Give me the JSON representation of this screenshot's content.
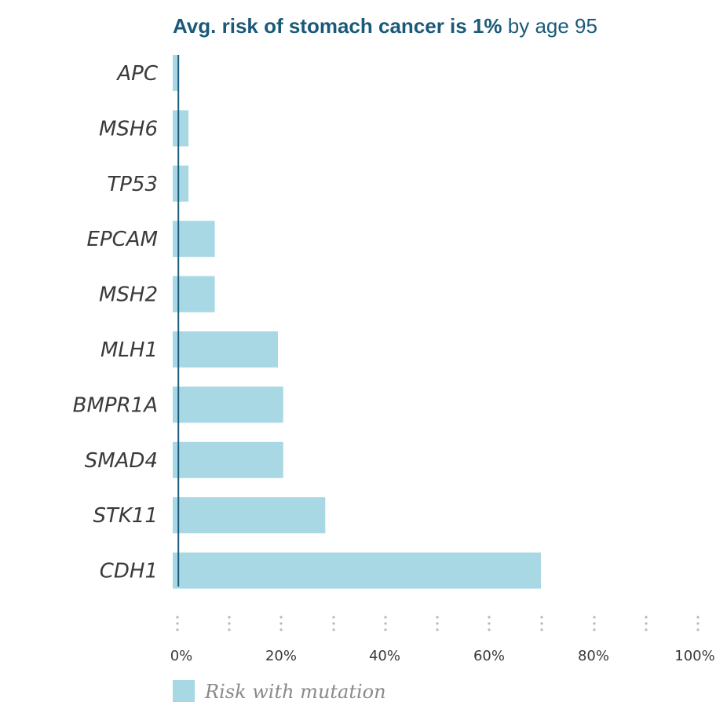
{
  "title": {
    "bold_part": "Avg. risk of stomach cancer is 1%",
    "normal_part": " by age 95"
  },
  "legend": {
    "label": "Risk with mutation"
  },
  "colors": {
    "bar": "#a8d8e4",
    "reference_line": "#1a5a78",
    "title": "#1a5a78",
    "grid_dots": "#b8b8b8"
  },
  "chart_data": {
    "type": "bar",
    "orientation": "horizontal",
    "title": "Avg. risk of stomach cancer is 1% by age 95",
    "categories": [
      "APC",
      "MSH6",
      "TP53",
      "EPCAM",
      "MSH2",
      "MLH1",
      "BMPR1A",
      "SMAD4",
      "STK11",
      "CDH1"
    ],
    "series": [
      {
        "name": "Risk with mutation",
        "values": [
          1,
          3,
          3,
          8,
          8,
          20,
          21,
          21,
          29,
          70
        ]
      }
    ],
    "average_risk": 1,
    "x_ticks": [
      "0%",
      "20%",
      "40%",
      "60%",
      "80%",
      "100%"
    ],
    "xlim": [
      0,
      100
    ],
    "grid": "dotted vertical",
    "legend_position": "bottom-left"
  }
}
